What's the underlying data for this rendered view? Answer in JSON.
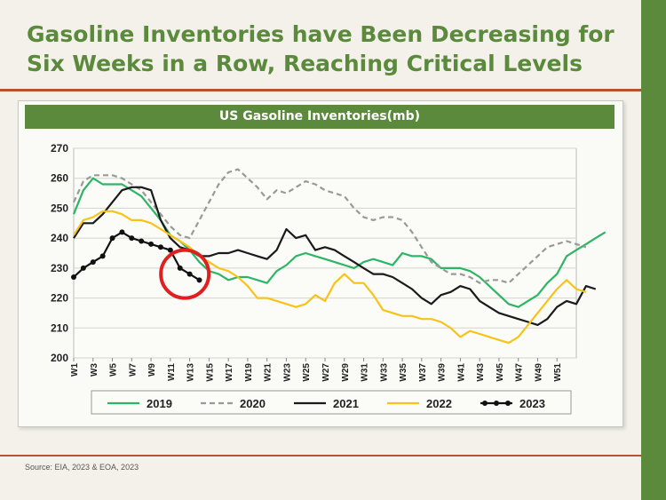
{
  "slide": {
    "title": "Gasoline Inventories have Been Decreasing for Six Weeks in a Row, Reaching Critical Levels",
    "source": "Source: EIA, 2023 & EOA, 2023"
  },
  "colors": {
    "accent": "#5b8a3c",
    "rule": "#b5532f",
    "highlight_circle": "#e02020"
  },
  "chart_data": {
    "type": "line",
    "title": "US Gasoline Inventories(mb)",
    "ylim": [
      200,
      270
    ],
    "y_ticks": [
      200,
      210,
      220,
      230,
      240,
      250,
      260,
      270
    ],
    "x_tick_labels": [
      "W1",
      "W3",
      "W5",
      "W7",
      "W9",
      "W11",
      "W13",
      "W15",
      "W17",
      "W19",
      "W21",
      "W23",
      "W25",
      "W27",
      "W29",
      "W31",
      "W33",
      "W35",
      "W37",
      "W39",
      "W41",
      "W43",
      "W45",
      "W47",
      "W49",
      "W51"
    ],
    "grid": true,
    "legend": "bottom",
    "annotation": "red circle around 2023 weeks 10-12",
    "series": [
      {
        "name": "2019",
        "color": "#2db566",
        "dash": "solid",
        "marker": false,
        "values": [
          248,
          256,
          260,
          258,
          258,
          258,
          256,
          254,
          250,
          246,
          241,
          239,
          236,
          232,
          229,
          228,
          226,
          227,
          227,
          226,
          225,
          229,
          231,
          234,
          235,
          234,
          233,
          232,
          231,
          230,
          232,
          233,
          232,
          231,
          235,
          234,
          234,
          233,
          230,
          230,
          230,
          229,
          227,
          224,
          221,
          218,
          217,
          219,
          221,
          225,
          228,
          234,
          236,
          238,
          240,
          242
        ]
      },
      {
        "name": "2020",
        "color": "#999999",
        "dash": "dashed",
        "marker": false,
        "values": [
          252,
          259,
          261,
          261,
          261,
          260,
          258,
          256,
          252,
          248,
          244,
          241,
          240,
          246,
          252,
          258,
          262,
          263,
          260,
          257,
          253,
          256,
          255,
          257,
          259,
          258,
          256,
          255,
          254,
          250,
          247,
          246,
          247,
          247,
          246,
          242,
          237,
          232,
          230,
          228,
          228,
          227,
          225,
          226,
          226,
          225,
          228,
          231,
          234,
          237,
          238,
          239,
          238,
          237
        ]
      },
      {
        "name": "2021",
        "color": "#1a1a1a",
        "dash": "solid",
        "marker": false,
        "values": [
          240,
          245,
          245,
          248,
          252,
          256,
          257,
          257,
          256,
          246,
          240,
          237,
          236,
          234,
          234,
          235,
          235,
          236,
          235,
          234,
          233,
          236,
          243,
          240,
          241,
          236,
          237,
          236,
          234,
          232,
          230,
          228,
          228,
          227,
          225,
          223,
          220,
          218,
          221,
          222,
          224,
          223,
          219,
          217,
          215,
          214,
          213,
          212,
          211,
          213,
          217,
          219,
          218,
          224,
          223
        ]
      },
      {
        "name": "2022",
        "color": "#f7c31a",
        "dash": "solid",
        "marker": false,
        "values": [
          241,
          246,
          247,
          249,
          249,
          248,
          246,
          246,
          245,
          243,
          241,
          239,
          237,
          234,
          232,
          230,
          229,
          227,
          224,
          220,
          220,
          219,
          218,
          217,
          218,
          221,
          219,
          225,
          228,
          225,
          225,
          221,
          216,
          215,
          214,
          214,
          213,
          213,
          212,
          210,
          207,
          209,
          208,
          207,
          206,
          205,
          207,
          211,
          215,
          219,
          223,
          226,
          223,
          222
        ]
      },
      {
        "name": "2023",
        "color": "#111111",
        "dash": "solid",
        "marker": true,
        "values": [
          227,
          230,
          232,
          234,
          240,
          242,
          240,
          239,
          238,
          237,
          236,
          230,
          228,
          226
        ]
      }
    ]
  }
}
